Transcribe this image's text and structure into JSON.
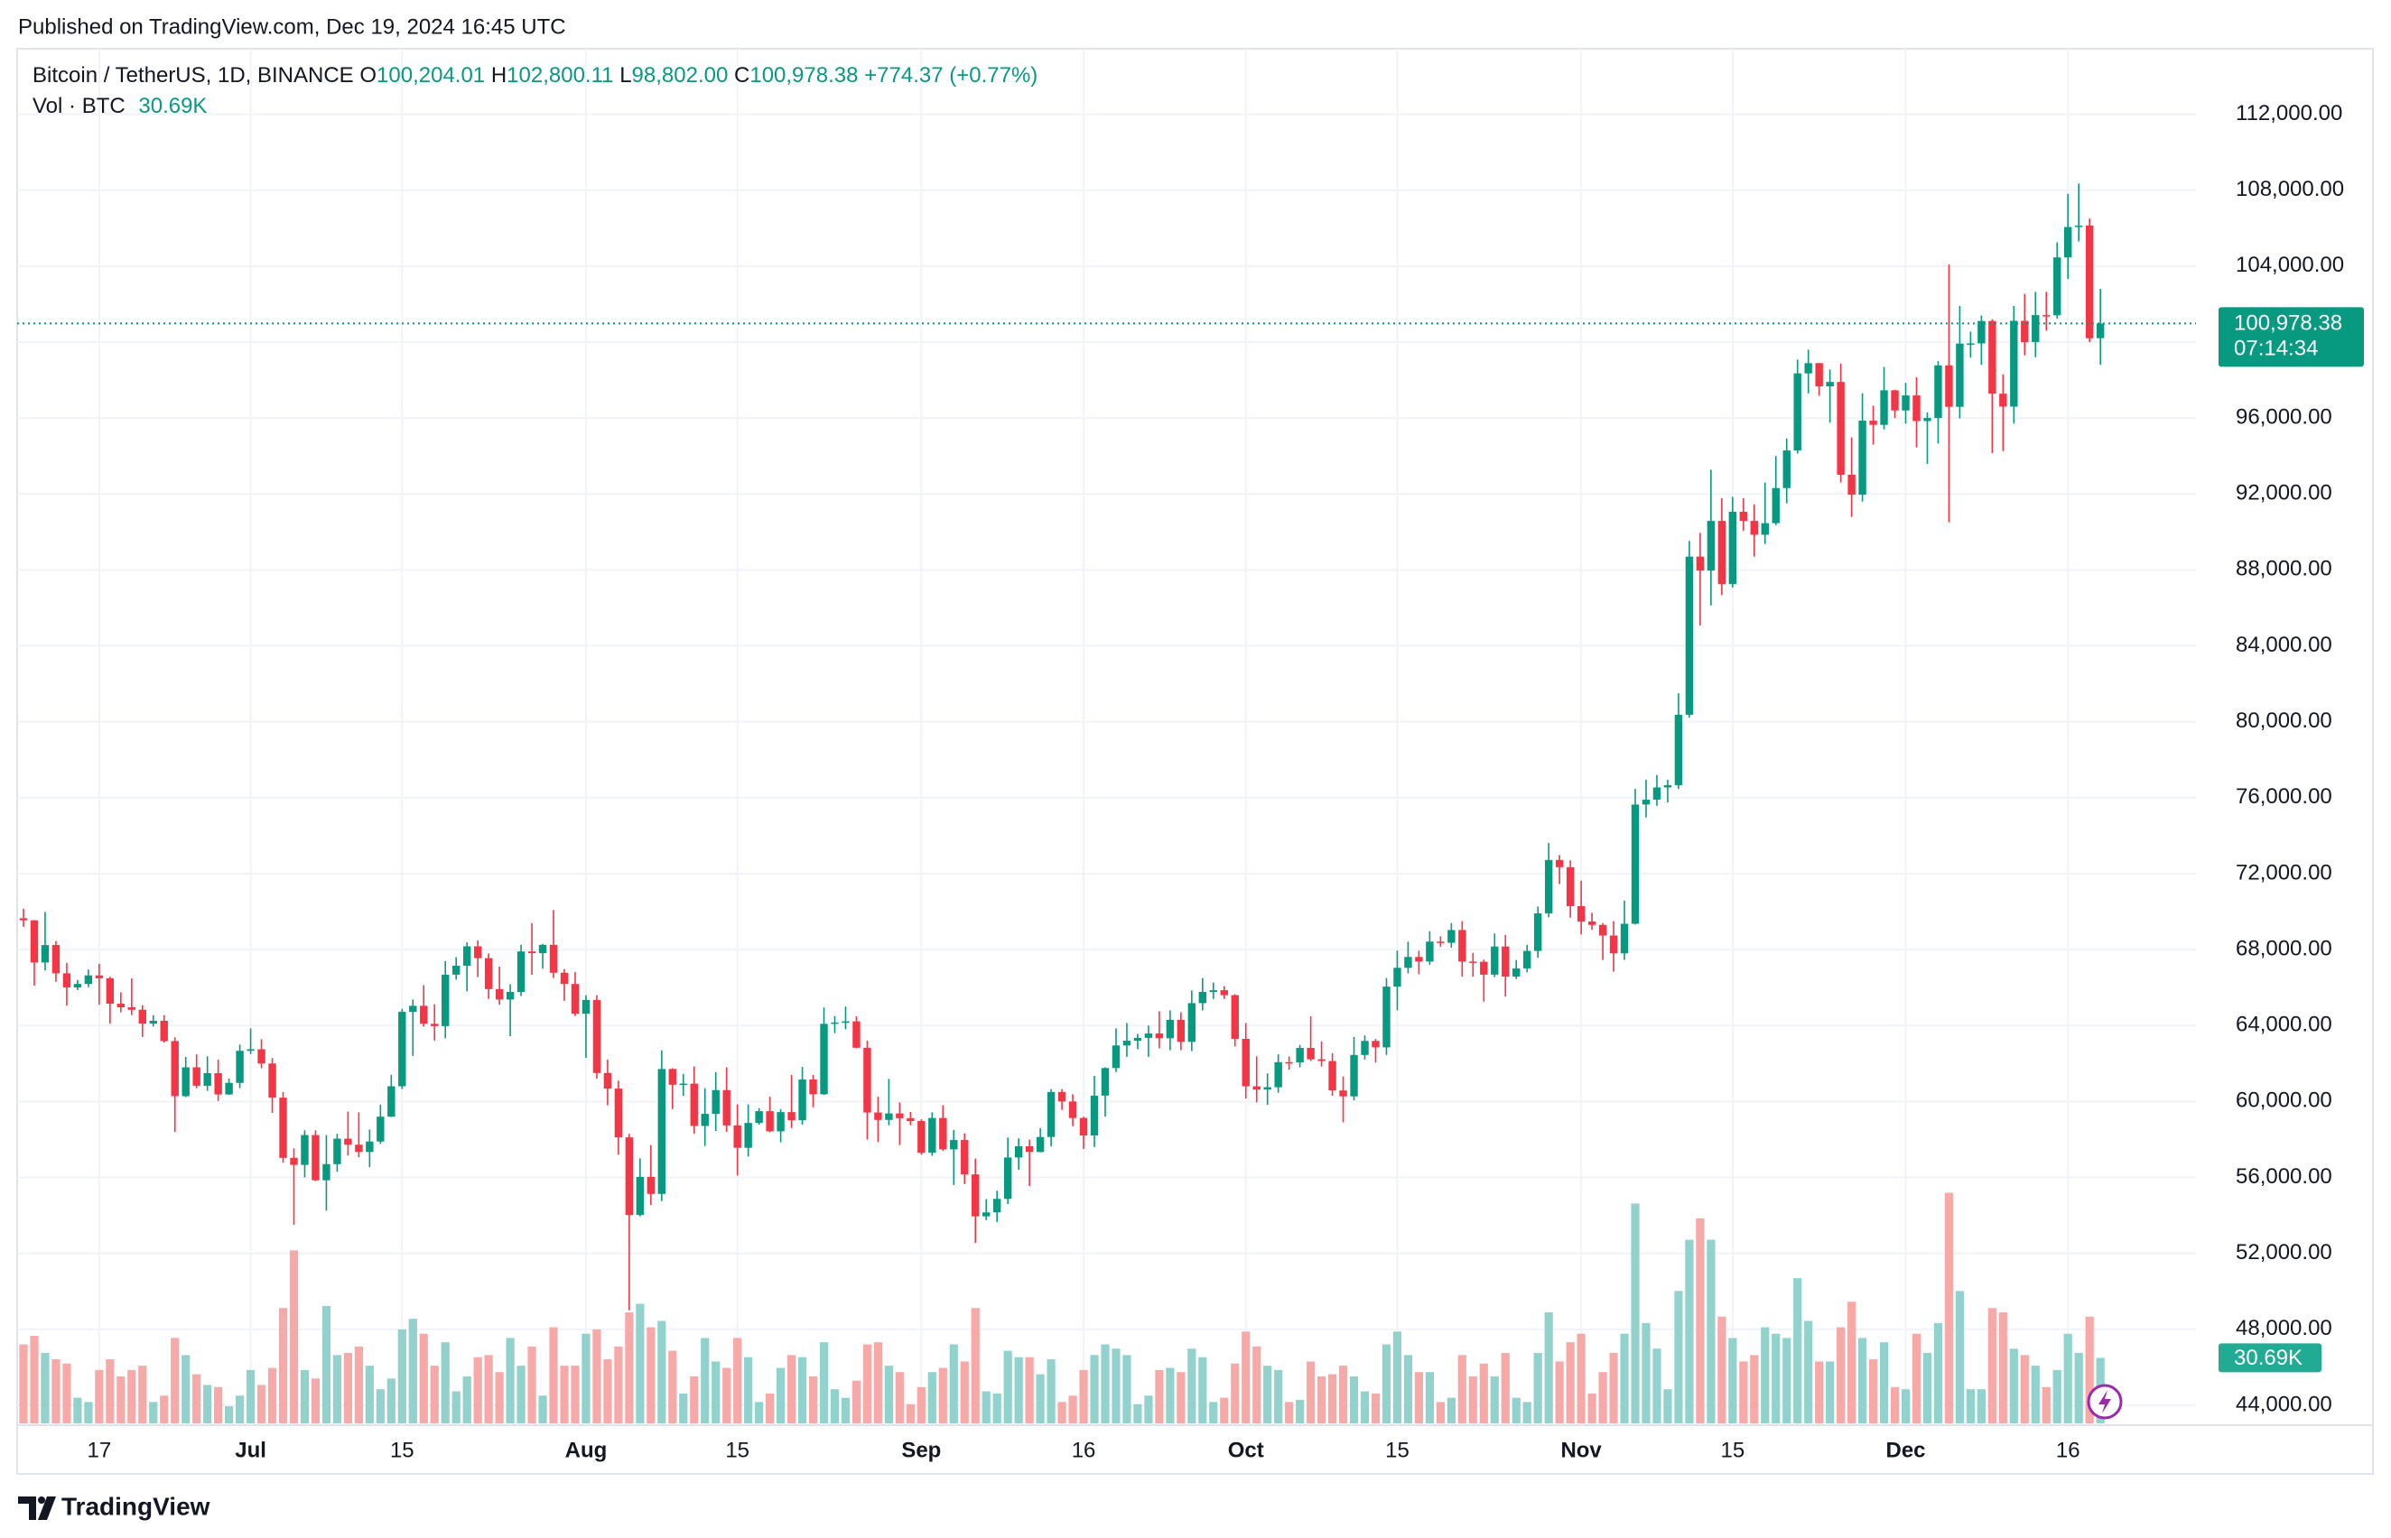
{
  "header": {
    "published": "Published on TradingView.com, Dec 19, 2024 16:45 UTC"
  },
  "chart_data": {
    "type": "candlestick",
    "legend": {
      "symbol": "Bitcoin / TetherUS, 1D, BINANCE",
      "open_label": "O",
      "open": "100,204.01",
      "high_label": "H",
      "high": "102,800.11",
      "low_label": "L",
      "low": "98,802.00",
      "close_label": "C",
      "close": "100,978.38",
      "change": "+774.37 (+0.77%)",
      "volume_title": "Vol · BTC",
      "volume": "30.69K"
    },
    "last_price_label": "100,978.38",
    "countdown": "07:14:34",
    "ylim": [
      42950,
      115450
    ],
    "yticks": [
      {
        "value": 44000,
        "label": "44,000.00"
      },
      {
        "value": 48000,
        "label": "48,000.00"
      },
      {
        "value": 52000,
        "label": "52,000.00"
      },
      {
        "value": 56000,
        "label": "56,000.00"
      },
      {
        "value": 60000,
        "label": "60,000.00"
      },
      {
        "value": 64000,
        "label": "64,000.00"
      },
      {
        "value": 68000,
        "label": "68,000.00"
      },
      {
        "value": 72000,
        "label": "72,000.00"
      },
      {
        "value": 76000,
        "label": "76,000.00"
      },
      {
        "value": 80000,
        "label": "80,000.00"
      },
      {
        "value": 84000,
        "label": "84,000.00"
      },
      {
        "value": 88000,
        "label": "88,000.00"
      },
      {
        "value": 92000,
        "label": "92,000.00"
      },
      {
        "value": 96000,
        "label": "96,000.00"
      },
      {
        "value": 100000,
        "label": "100,000.00"
      },
      {
        "value": 104000,
        "label": "104,000.00"
      },
      {
        "value": 108000,
        "label": "108,000.00"
      },
      {
        "value": 112000,
        "label": "112,000.00"
      }
    ],
    "xticks": [
      {
        "value": 7,
        "label": "17"
      },
      {
        "value": 21,
        "label": "Jul"
      },
      {
        "value": 35,
        "label": "15"
      },
      {
        "value": 52,
        "label": "Aug"
      },
      {
        "value": 66,
        "label": "15"
      },
      {
        "value": 83,
        "label": "Sep"
      },
      {
        "value": 98,
        "label": "16"
      },
      {
        "value": 113,
        "label": "Oct"
      },
      {
        "value": 127,
        "label": "15"
      },
      {
        "value": 144,
        "label": "Nov"
      },
      {
        "value": 158,
        "label": "15"
      },
      {
        "value": 174,
        "label": "Dec"
      },
      {
        "value": 189,
        "label": "16"
      }
    ],
    "grid": true,
    "up_color": "#089981",
    "down_color": "#f23645",
    "up_volume_color": "#92d2cc",
    "down_volume_color": "#f7a9a7",
    "volume_lim": [
      0,
      130
    ],
    "candles": [
      [
        69650,
        70150,
        69200,
        69540
      ],
      [
        69540,
        69560,
        66100,
        67320
      ],
      [
        67320,
        69980,
        66900,
        68240
      ],
      [
        68240,
        68450,
        66300,
        66750
      ],
      [
        66750,
        67300,
        65050,
        66010
      ],
      [
        66010,
        66400,
        65870,
        66190
      ],
      [
        66190,
        66950,
        66020,
        66640
      ],
      [
        66640,
        67250,
        65100,
        66490
      ],
      [
        66490,
        66570,
        64100,
        65150
      ],
      [
        65150,
        65750,
        64700,
        64960
      ],
      [
        64960,
        66480,
        64550,
        64830
      ],
      [
        64830,
        65070,
        63400,
        64100
      ],
      [
        64100,
        64550,
        63950,
        64250
      ],
      [
        64250,
        64550,
        63100,
        63180
      ],
      [
        63180,
        63380,
        58400,
        60280
      ],
      [
        60280,
        62350,
        60230,
        61800
      ],
      [
        61800,
        62480,
        60700,
        60830
      ],
      [
        60830,
        62380,
        60560,
        61490
      ],
      [
        61490,
        62200,
        60030,
        60370
      ],
      [
        60370,
        61200,
        60350,
        60980
      ],
      [
        60980,
        63000,
        60700,
        62670
      ],
      [
        62670,
        63850,
        62500,
        62750
      ],
      [
        62750,
        63280,
        61750,
        62000
      ],
      [
        62000,
        62290,
        59400,
        60200
      ],
      [
        60200,
        60500,
        56770,
        57030
      ],
      [
        57030,
        57530,
        53500,
        56660
      ],
      [
        56660,
        58480,
        56000,
        58230
      ],
      [
        58230,
        58480,
        55800,
        55850
      ],
      [
        55850,
        58230,
        54250,
        56700
      ],
      [
        56700,
        58300,
        56300,
        58040
      ],
      [
        58040,
        59470,
        57150,
        57720
      ],
      [
        57720,
        59430,
        57060,
        57340
      ],
      [
        57340,
        58520,
        56540,
        57890
      ],
      [
        57890,
        59840,
        57760,
        59200
      ],
      [
        59200,
        61400,
        59180,
        60800
      ],
      [
        60800,
        64880,
        60650,
        64720
      ],
      [
        64720,
        65370,
        62400,
        65040
      ],
      [
        65040,
        66130,
        63940,
        64090
      ],
      [
        64090,
        65120,
        63210,
        63970
      ],
      [
        63970,
        67400,
        63330,
        66680
      ],
      [
        66680,
        67600,
        66420,
        67150
      ],
      [
        67150,
        68380,
        65800,
        68170
      ],
      [
        68170,
        68480,
        66550,
        67550
      ],
      [
        67550,
        67800,
        65400,
        65920
      ],
      [
        65920,
        67100,
        65100,
        65370
      ],
      [
        65370,
        66180,
        63440,
        65770
      ],
      [
        65770,
        68250,
        65550,
        67900
      ],
      [
        67900,
        69400,
        66670,
        67810
      ],
      [
        67810,
        68300,
        67000,
        68250
      ],
      [
        68250,
        70080,
        66500,
        66780
      ],
      [
        66780,
        66980,
        65300,
        66190
      ],
      [
        66190,
        66820,
        64500,
        64620
      ],
      [
        64620,
        65600,
        62300,
        65350
      ],
      [
        65350,
        65600,
        61200,
        61500
      ],
      [
        61500,
        62200,
        59800,
        60680
      ],
      [
        60680,
        61100,
        57200,
        58110
      ],
      [
        58110,
        58300,
        49000,
        54020
      ],
      [
        54020,
        57000,
        53950,
        56030
      ],
      [
        56030,
        57700,
        54550,
        55130
      ],
      [
        55130,
        62700,
        54750,
        61710
      ],
      [
        61710,
        61750,
        59600,
        60880
      ],
      [
        60880,
        61450,
        60300,
        60940
      ],
      [
        60940,
        61850,
        58300,
        58710
      ],
      [
        58710,
        60700,
        57650,
        59350
      ],
      [
        59350,
        61550,
        58450,
        60600
      ],
      [
        60600,
        61800,
        58400,
        58740
      ],
      [
        58740,
        59850,
        56100,
        57560
      ],
      [
        57560,
        59850,
        57100,
        58870
      ],
      [
        58870,
        59650,
        58780,
        59490
      ],
      [
        59490,
        60250,
        58380,
        58430
      ],
      [
        58430,
        59600,
        57850,
        59440
      ],
      [
        59440,
        61400,
        58600,
        59010
      ],
      [
        59010,
        61820,
        58780,
        61160
      ],
      [
        61160,
        61400,
        59700,
        60380
      ],
      [
        60380,
        64950,
        60350,
        64090
      ],
      [
        64090,
        64500,
        63600,
        64160
      ],
      [
        64160,
        65000,
        63800,
        64220
      ],
      [
        64220,
        64480,
        62800,
        62830
      ],
      [
        62830,
        63200,
        58000,
        59420
      ],
      [
        59420,
        60250,
        57860,
        59030
      ],
      [
        59030,
        61190,
        58750,
        59370
      ],
      [
        59370,
        59950,
        57700,
        59120
      ],
      [
        59120,
        59450,
        58750,
        58970
      ],
      [
        58970,
        59060,
        57200,
        57300
      ],
      [
        57300,
        59430,
        57140,
        59130
      ],
      [
        59130,
        59800,
        57400,
        57480
      ],
      [
        57480,
        58500,
        55600,
        57970
      ],
      [
        57970,
        58320,
        55650,
        56160
      ],
      [
        56160,
        56990,
        52550,
        53950
      ],
      [
        53950,
        54850,
        53750,
        54160
      ],
      [
        54160,
        55300,
        53650,
        54870
      ],
      [
        54870,
        58100,
        54600,
        57050
      ],
      [
        57050,
        58050,
        56400,
        57640
      ],
      [
        57640,
        57990,
        55550,
        57340
      ],
      [
        57340,
        58600,
        57320,
        58130
      ],
      [
        58130,
        60650,
        57630,
        60500
      ],
      [
        60500,
        60650,
        59550,
        60000
      ],
      [
        60000,
        60380,
        58700,
        59130
      ],
      [
        59130,
        59200,
        57500,
        58210
      ],
      [
        58210,
        61350,
        57600,
        60310
      ],
      [
        60310,
        61800,
        59200,
        61760
      ],
      [
        61760,
        63850,
        61550,
        62950
      ],
      [
        62950,
        64130,
        62350,
        63200
      ],
      [
        63200,
        63560,
        62750,
        63350
      ],
      [
        63350,
        64000,
        62350,
        63580
      ],
      [
        63580,
        64750,
        62800,
        63330
      ],
      [
        63330,
        64800,
        62700,
        64300
      ],
      [
        64300,
        64700,
        62700,
        63140
      ],
      [
        63140,
        65850,
        62650,
        65180
      ],
      [
        65180,
        66500,
        64800,
        65770
      ],
      [
        65770,
        66260,
        65400,
        65860
      ],
      [
        65860,
        66080,
        65400,
        65600
      ],
      [
        65600,
        65650,
        62900,
        63300
      ],
      [
        63300,
        64130,
        60160,
        60800
      ],
      [
        60800,
        62380,
        59950,
        60630
      ],
      [
        60630,
        61480,
        59820,
        60750
      ],
      [
        60750,
        62480,
        60460,
        62070
      ],
      [
        62070,
        62370,
        61680,
        62060
      ],
      [
        62060,
        62980,
        61800,
        62820
      ],
      [
        62820,
        64480,
        62130,
        62220
      ],
      [
        62220,
        63170,
        61840,
        62130
      ],
      [
        62130,
        62540,
        60300,
        60580
      ],
      [
        60580,
        61320,
        58900,
        60270
      ],
      [
        60270,
        63400,
        60060,
        62450
      ],
      [
        62450,
        63480,
        62210,
        63190
      ],
      [
        63190,
        63290,
        62050,
        62850
      ],
      [
        62850,
        66500,
        62450,
        66050
      ],
      [
        66050,
        67950,
        64800,
        67040
      ],
      [
        67040,
        68420,
        66750,
        67610
      ],
      [
        67610,
        67940,
        66700,
        67370
      ],
      [
        67370,
        68970,
        67200,
        68420
      ],
      [
        68420,
        68700,
        68150,
        68360
      ],
      [
        68360,
        69400,
        68100,
        69030
      ],
      [
        69030,
        69500,
        66580,
        67370
      ],
      [
        67370,
        67830,
        66570,
        67360
      ],
      [
        67360,
        67470,
        65260,
        66680
      ],
      [
        66680,
        68850,
        66550,
        68160
      ],
      [
        68160,
        68770,
        65520,
        66580
      ],
      [
        66580,
        67450,
        66450,
        67010
      ],
      [
        67010,
        68250,
        66800,
        67930
      ],
      [
        67930,
        70270,
        67570,
        69910
      ],
      [
        69910,
        73620,
        69700,
        72720
      ],
      [
        72720,
        72980,
        71450,
        72340
      ],
      [
        72340,
        72700,
        69680,
        70290
      ],
      [
        70290,
        71630,
        68800,
        69480
      ],
      [
        69480,
        69940,
        69040,
        69300
      ],
      [
        69300,
        69400,
        67450,
        68740
      ],
      [
        68740,
        69500,
        66840,
        67800
      ],
      [
        67800,
        70580,
        67460,
        69360
      ],
      [
        69360,
        76460,
        69320,
        75640
      ],
      [
        75640,
        76950,
        74960,
        75900
      ],
      [
        75900,
        77200,
        75570,
        76540
      ],
      [
        76540,
        76950,
        75750,
        76660
      ],
      [
        76660,
        81500,
        76460,
        80370
      ],
      [
        80370,
        89530,
        80220,
        88700
      ],
      [
        88700,
        89950,
        85070,
        87960
      ],
      [
        87960,
        93270,
        86130,
        90580
      ],
      [
        90580,
        91780,
        86670,
        87250
      ],
      [
        87250,
        91850,
        87070,
        91060
      ],
      [
        91060,
        91780,
        90050,
        90580
      ],
      [
        90580,
        91450,
        88700,
        89850
      ],
      [
        89850,
        92600,
        89360,
        90460
      ],
      [
        90460,
        94000,
        90360,
        92310
      ],
      [
        92310,
        94920,
        91500,
        94290
      ],
      [
        94290,
        99080,
        94130,
        98350
      ],
      [
        98350,
        99600,
        97300,
        98890
      ],
      [
        98890,
        98900,
        97170,
        97670
      ],
      [
        97670,
        98550,
        95750,
        97900
      ],
      [
        97900,
        98870,
        92600,
        93010
      ],
      [
        93010,
        94980,
        90790,
        91960
      ],
      [
        91960,
        97300,
        91600,
        95860
      ],
      [
        95860,
        96650,
        94600,
        95640
      ],
      [
        95640,
        98690,
        95400,
        97460
      ],
      [
        97460,
        97490,
        96000,
        96400
      ],
      [
        96400,
        97850,
        95700,
        97190
      ],
      [
        97190,
        98150,
        94450,
        95840
      ],
      [
        95840,
        96300,
        93580,
        96000
      ],
      [
        96000,
        99000,
        94650,
        98770
      ],
      [
        98770,
        104090,
        90500,
        96590
      ],
      [
        96590,
        101900,
        95980,
        99920
      ],
      [
        99920,
        100550,
        99180,
        99930
      ],
      [
        99930,
        101400,
        98800,
        101110
      ],
      [
        101110,
        101200,
        94150,
        97280
      ],
      [
        97280,
        98300,
        94260,
        96600
      ],
      [
        96600,
        101900,
        95700,
        101120
      ],
      [
        101120,
        102540,
        99300,
        100000
      ],
      [
        100000,
        102650,
        99200,
        101420
      ],
      [
        101420,
        102650,
        100600,
        101410
      ],
      [
        101410,
        105250,
        101230,
        104460
      ],
      [
        104460,
        107800,
        103320,
        106060
      ],
      [
        106060,
        108350,
        105300,
        106140
      ],
      [
        106140,
        106500,
        100000,
        100200
      ],
      [
        100204.01,
        102800.11,
        98802.0,
        100978.38
      ]
    ],
    "volumes": [
      37,
      41,
      33,
      30,
      28,
      12,
      10,
      25,
      30,
      22,
      25,
      27,
      10,
      13,
      40,
      32,
      23,
      18,
      17,
      8,
      13,
      25,
      18,
      26,
      54,
      81,
      25,
      21,
      55,
      32,
      33,
      36,
      27,
      16,
      21,
      44,
      49,
      42,
      27,
      38,
      15,
      22,
      31,
      32,
      24,
      40,
      27,
      36,
      13,
      45,
      27,
      27,
      42,
      44,
      30,
      36,
      52,
      56,
      45,
      48,
      34,
      14,
      22,
      40,
      29,
      26,
      40,
      31,
      10,
      14,
      26,
      32,
      31,
      22,
      38,
      16,
      12,
      20,
      37,
      38,
      27,
      24,
      9,
      17,
      24,
      26,
      37,
      29,
      54,
      15,
      14,
      34,
      31,
      31,
      23,
      30,
      10,
      13,
      25,
      32,
      37,
      35,
      32,
      9,
      13,
      25,
      26,
      24,
      35,
      31,
      10,
      12,
      28,
      43,
      36,
      27,
      25,
      10,
      11,
      29,
      22,
      23,
      27,
      22,
      15,
      14,
      37,
      43,
      32,
      24,
      24,
      10,
      12,
      32,
      22,
      28,
      22,
      33,
      12,
      10,
      33,
      52,
      29,
      38,
      42,
      14,
      24,
      33,
      42,
      103,
      47,
      35,
      16,
      62,
      86,
      96,
      86,
      50,
      40,
      29,
      32,
      45,
      42,
      40,
      68,
      48,
      29,
      29,
      45,
      57,
      40,
      30,
      38,
      17,
      16,
      42,
      33,
      47,
      108,
      62,
      16,
      16,
      54,
      52,
      35,
      32,
      27,
      17,
      25,
      42,
      33,
      50,
      30.69
    ]
  },
  "footer": {
    "brand": "TradingView"
  }
}
